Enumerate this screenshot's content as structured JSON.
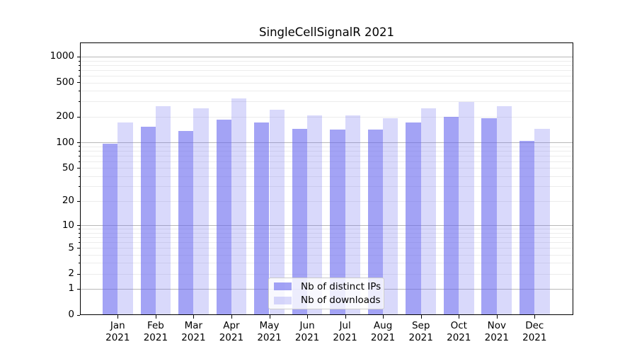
{
  "title": "SingleCellSignalR 2021",
  "chart_data": {
    "type": "bar",
    "title": "SingleCellSignalR 2021",
    "categories": [
      "Jan 2021",
      "Feb 2021",
      "Mar 2021",
      "Apr 2021",
      "May 2021",
      "Jun 2021",
      "Jul 2021",
      "Aug 2021",
      "Sep 2021",
      "Oct 2021",
      "Nov 2021",
      "Dec 2021"
    ],
    "series": [
      {
        "name": "Nb of distinct IPs",
        "color": "rgba(102,102,238,0.6)",
        "values": [
          97,
          153,
          136,
          186,
          170,
          144,
          142,
          140,
          171,
          200,
          190,
          103
        ]
      },
      {
        "name": "Nb of downloads",
        "color": "rgba(102,102,238,0.25)",
        "values": [
          172,
          265,
          252,
          327,
          241,
          208,
          206,
          192,
          248,
          298,
          265,
          145
        ]
      }
    ],
    "yscale": "log1p",
    "ylim": [
      0,
      1445
    ],
    "yticks": [
      0,
      1,
      2,
      5,
      10,
      20,
      50,
      100,
      200,
      500,
      1000
    ],
    "yticks_minor": [
      3,
      4,
      6,
      7,
      8,
      9,
      30,
      40,
      60,
      70,
      80,
      90,
      300,
      400,
      600,
      700,
      800,
      900
    ],
    "ygrid_major": [
      1,
      10,
      100,
      1000
    ],
    "grid": true,
    "legend_position": "lower center",
    "xlabel": "",
    "ylabel": ""
  },
  "colors": {
    "bar_base": "#6666ee",
    "grid_major": "#b8b8b8",
    "grid_minor": "#ececec",
    "axis": "#000000",
    "legend_border": "#cccccc",
    "legend_bg": "rgba(255,255,255,0.8)"
  }
}
